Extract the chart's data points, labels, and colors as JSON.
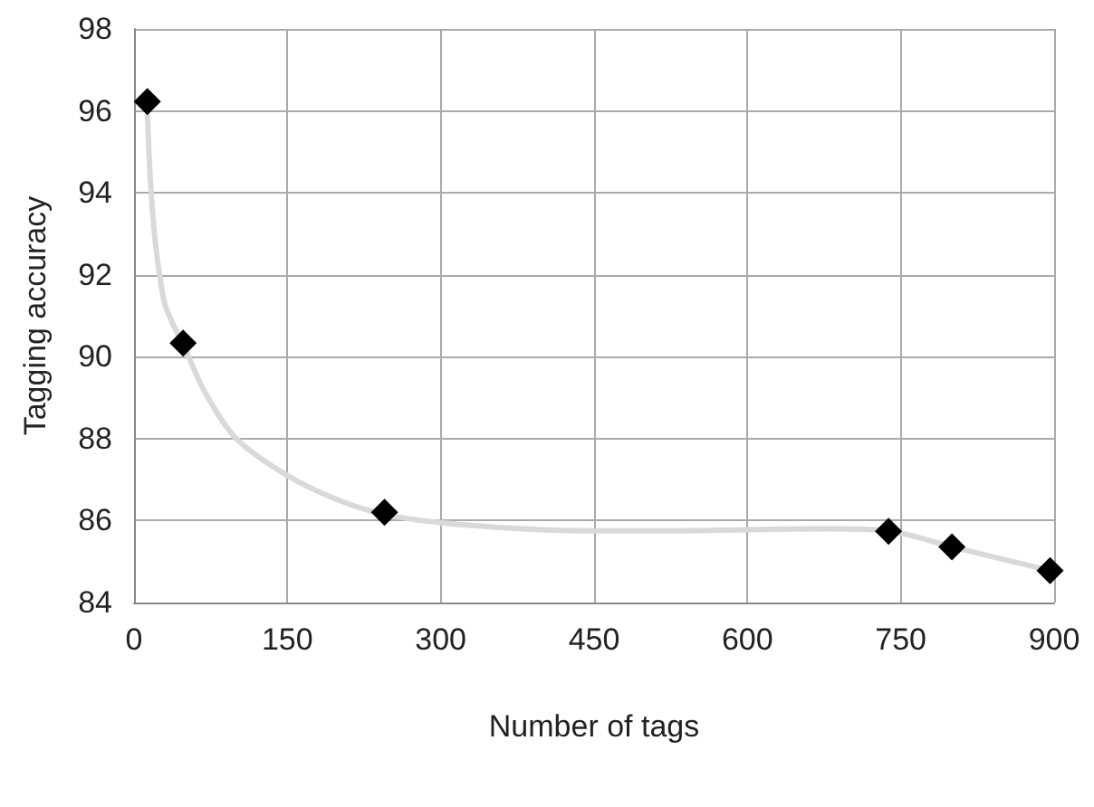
{
  "chart_data": {
    "type": "scatter",
    "xlabel": "Number of tags",
    "ylabel": "Tagging accuracy",
    "xlim": [
      0,
      900
    ],
    "xticks": [
      0,
      150,
      300,
      450,
      600,
      750,
      900
    ],
    "ylim": [
      84,
      98
    ],
    "yticks": [
      84,
      86,
      88,
      90,
      92,
      94,
      96,
      98
    ],
    "grid": true,
    "series": [
      {
        "type": "line",
        "color": "#d9d9d9",
        "marker": "none",
        "x": [
          13,
          16,
          20,
          25,
          30,
          38,
          48,
          70,
          100,
          150,
          200,
          245,
          300,
          380,
          450,
          530,
          600,
          680,
          738,
          800,
          896
        ],
        "values": [
          96.0,
          94.3,
          93.0,
          92.0,
          91.3,
          90.8,
          90.3,
          89.1,
          88.0,
          87.1,
          86.5,
          86.15,
          85.95,
          85.8,
          85.75,
          85.75,
          85.78,
          85.8,
          85.75,
          85.36,
          84.78
        ]
      },
      {
        "type": "scatter",
        "color": "#000000",
        "marker": "diamond",
        "x": [
          13,
          48,
          245,
          738,
          800,
          896
        ],
        "values": [
          96.23,
          90.33,
          86.2,
          85.74,
          85.36,
          84.78
        ]
      }
    ]
  }
}
